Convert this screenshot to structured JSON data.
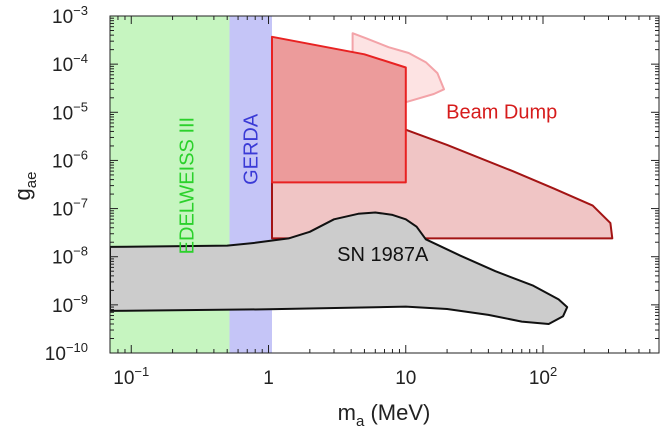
{
  "chart_data": {
    "type": "area",
    "title": "",
    "xlabel": "m_a (MeV)",
    "ylabel": "g_ae",
    "xscale": "log",
    "yscale": "log",
    "xlim": [
      0.07,
      700
    ],
    "ylim": [
      1e-10,
      0.001
    ],
    "grid": false,
    "x_ticks": [
      {
        "value": 0.1,
        "base": "10",
        "exp": "−1"
      },
      {
        "value": 1,
        "base": "1",
        "exp": ""
      },
      {
        "value": 10,
        "base": "10",
        "exp": ""
      },
      {
        "value": 100,
        "base": "10",
        "exp": "2"
      }
    ],
    "y_ticks": [
      {
        "value": 1e-10,
        "base": "10",
        "exp": "−10"
      },
      {
        "value": 1e-09,
        "base": "10",
        "exp": "−9"
      },
      {
        "value": 1e-08,
        "base": "10",
        "exp": "−8"
      },
      {
        "value": 1e-07,
        "base": "10",
        "exp": "−7"
      },
      {
        "value": 1e-06,
        "base": "10",
        "exp": "−6"
      },
      {
        "value": 1e-05,
        "base": "10",
        "exp": "−5"
      },
      {
        "value": 0.0001,
        "base": "10",
        "exp": "−4"
      },
      {
        "value": 0.001,
        "base": "10",
        "exp": "−3"
      }
    ],
    "regions": [
      {
        "name": "EDELWEISS III",
        "label": "EDELWEISS III",
        "fill": "#c6f5c0",
        "stroke": "none",
        "label_color": "#2bd12b",
        "label_pos": [
          0.26,
          3e-07
        ],
        "label_rotate": -90,
        "points": [
          [
            0.07,
            1e-10
          ],
          [
            0.52,
            1e-10
          ],
          [
            0.52,
            0.001
          ],
          [
            0.07,
            0.001
          ]
        ]
      },
      {
        "name": "GERDA",
        "label": "GERDA",
        "fill": "#c5c5f7",
        "stroke": "none",
        "label_color": "#3a3ad6",
        "label_pos": [
          0.76,
          1.7e-06
        ],
        "label_rotate": -90,
        "points": [
          [
            0.52,
            1e-10
          ],
          [
            1.06,
            1e-10
          ],
          [
            1.06,
            0.001
          ],
          [
            0.52,
            0.001
          ]
        ]
      },
      {
        "name": "Beam Dump light",
        "label": "",
        "fill": "#fde3e3",
        "stroke": "#f3a3a8",
        "points": [
          [
            4.1,
            0.00044
          ],
          [
            5.2,
            0.00034
          ],
          [
            7.5,
            0.000225
          ],
          [
            10.5,
            0.00017
          ],
          [
            14,
            0.00011
          ],
          [
            17,
            6.5e-05
          ],
          [
            19,
            3e-05
          ],
          [
            16,
            2.4e-05
          ],
          [
            11,
            1.75e-05
          ],
          [
            8,
            1.35e-05
          ],
          [
            5.5,
            1.1e-05
          ],
          [
            4.1,
            9e-06
          ]
        ]
      },
      {
        "name": "Beam Dump",
        "label": "Beam Dump",
        "fill": "#f0c5c5",
        "stroke": "#a31414",
        "label_color": "#d61c1c",
        "label_pos": [
          50,
          9.5e-06
        ],
        "points": [
          [
            1.06,
            2.4e-08
          ],
          [
            320,
            2.4e-08
          ],
          [
            310,
            5e-08
          ],
          [
            230,
            1.15e-07
          ],
          [
            120,
            2.6e-07
          ],
          [
            60,
            6e-07
          ],
          [
            20,
            2.1e-06
          ],
          [
            7,
            6.3e-06
          ],
          [
            3,
            1.45e-05
          ],
          [
            2,
            2.9e-05
          ],
          [
            1.06,
            9e-05
          ]
        ]
      },
      {
        "name": "Beam Dump dark",
        "label": "",
        "fill": "#ec9b9b",
        "stroke": "#e82222",
        "points": [
          [
            1.06,
            0.00037
          ],
          [
            5,
            0.00016
          ],
          [
            10,
            8.5e-05
          ],
          [
            10,
            3.5e-07
          ],
          [
            1.06,
            3.5e-07
          ]
        ]
      },
      {
        "name": "SN 1987A",
        "label": "SN 1987A",
        "fill": "#cccccc",
        "stroke": "#111111",
        "label_color": "#111111",
        "label_pos": [
          6.8,
          1.05e-08
        ],
        "points": [
          [
            0.07,
            1.6e-08
          ],
          [
            0.5,
            1.7e-08
          ],
          [
            0.8,
            1.95e-08
          ],
          [
            1.4,
            2.4e-08
          ],
          [
            2,
            3.3e-08
          ],
          [
            3,
            6e-08
          ],
          [
            4.5,
            7.8e-08
          ],
          [
            6,
            8.3e-08
          ],
          [
            8,
            7.4e-08
          ],
          [
            10,
            6e-08
          ],
          [
            12,
            4.2e-08
          ],
          [
            14,
            2.3e-08
          ],
          [
            25,
            1.05e-08
          ],
          [
            45,
            5e-09
          ],
          [
            85,
            2.5e-09
          ],
          [
            130,
            1.3e-09
          ],
          [
            150,
            9e-10
          ],
          [
            140,
            5.8e-10
          ],
          [
            110,
            4e-10
          ],
          [
            70,
            4.5e-10
          ],
          [
            40,
            6.2e-10
          ],
          [
            20,
            8.2e-10
          ],
          [
            10,
            9.2e-10
          ],
          [
            1,
            8.1e-10
          ],
          [
            0.07,
            7.5e-10
          ]
        ]
      }
    ]
  }
}
